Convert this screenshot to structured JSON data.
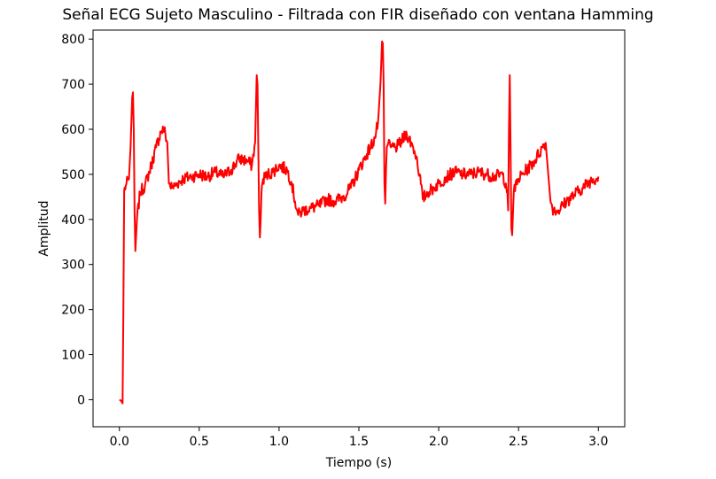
{
  "chart_data": {
    "type": "line",
    "title": "Señal ECG Sujeto Masculino - Filtrada con FIR diseñado con ventana Hamming",
    "xlabel": "Tiempo (s)",
    "ylabel": "Amplitud",
    "xlim": [
      -0.165,
      3.165
    ],
    "ylim": [
      -60,
      820
    ],
    "x_ticks": [
      0.0,
      0.5,
      1.0,
      1.5,
      2.0,
      2.5,
      3.0
    ],
    "x_tick_labels": [
      "0.0",
      "0.5",
      "1.0",
      "1.5",
      "2.0",
      "2.5",
      "3.0"
    ],
    "y_ticks": [
      0,
      100,
      200,
      300,
      400,
      500,
      600,
      700,
      800
    ],
    "y_tick_labels": [
      "0",
      "100",
      "200",
      "300",
      "400",
      "500",
      "600",
      "700",
      "800"
    ],
    "grid": false,
    "series": [
      {
        "color": "#ff0000",
        "x": [
          0.0,
          0.01,
          0.02,
          0.025,
          0.03,
          0.04,
          0.06,
          0.07,
          0.08,
          0.085,
          0.09,
          0.095,
          0.1,
          0.11,
          0.13,
          0.16,
          0.2,
          0.23,
          0.26,
          0.28,
          0.3,
          0.31,
          0.33,
          0.36,
          0.4,
          0.45,
          0.5,
          0.55,
          0.6,
          0.65,
          0.7,
          0.75,
          0.8,
          0.83,
          0.85,
          0.86,
          0.865,
          0.87,
          0.875,
          0.88,
          0.885,
          0.89,
          0.9,
          0.93,
          0.96,
          1.0,
          1.05,
          1.08,
          1.1,
          1.12,
          1.15,
          1.2,
          1.25,
          1.3,
          1.35,
          1.4,
          1.45,
          1.5,
          1.55,
          1.6,
          1.62,
          1.635,
          1.645,
          1.65,
          1.655,
          1.66,
          1.665,
          1.67,
          1.675,
          1.68,
          1.7,
          1.73,
          1.75,
          1.8,
          1.84,
          1.86,
          1.88,
          1.9,
          1.93,
          1.97,
          2.0,
          2.05,
          2.1,
          2.15,
          2.2,
          2.25,
          2.3,
          2.35,
          2.4,
          2.42,
          2.43,
          2.435,
          2.44,
          2.445,
          2.45,
          2.455,
          2.46,
          2.47,
          2.5,
          2.55,
          2.6,
          2.65,
          2.67,
          2.7,
          2.72,
          2.75,
          2.8,
          2.85,
          2.9,
          2.95,
          3.0
        ],
        "y": [
          0,
          -2,
          -8,
          200,
          465,
          475,
          490,
          560,
          670,
          682,
          600,
          420,
          330,
          400,
          460,
          475,
          520,
          560,
          595,
          600,
          570,
          480,
          470,
          480,
          490,
          495,
          500,
          495,
          505,
          495,
          510,
          535,
          530,
          520,
          570,
          720,
          700,
          560,
          420,
          360,
          400,
          460,
          490,
          500,
          505,
          520,
          510,
          480,
          440,
          410,
          420,
          425,
          430,
          445,
          440,
          450,
          470,
          510,
          545,
          580,
          615,
          700,
          795,
          790,
          700,
          480,
          435,
          510,
          560,
          565,
          560,
          560,
          565,
          590,
          560,
          540,
          500,
          445,
          460,
          470,
          480,
          495,
          505,
          500,
          500,
          505,
          500,
          495,
          500,
          480,
          460,
          420,
          600,
          720,
          560,
          380,
          365,
          460,
          490,
          510,
          530,
          560,
          570,
          440,
          420,
          420,
          440,
          455,
          470,
          485,
          495
        ]
      }
    ]
  }
}
